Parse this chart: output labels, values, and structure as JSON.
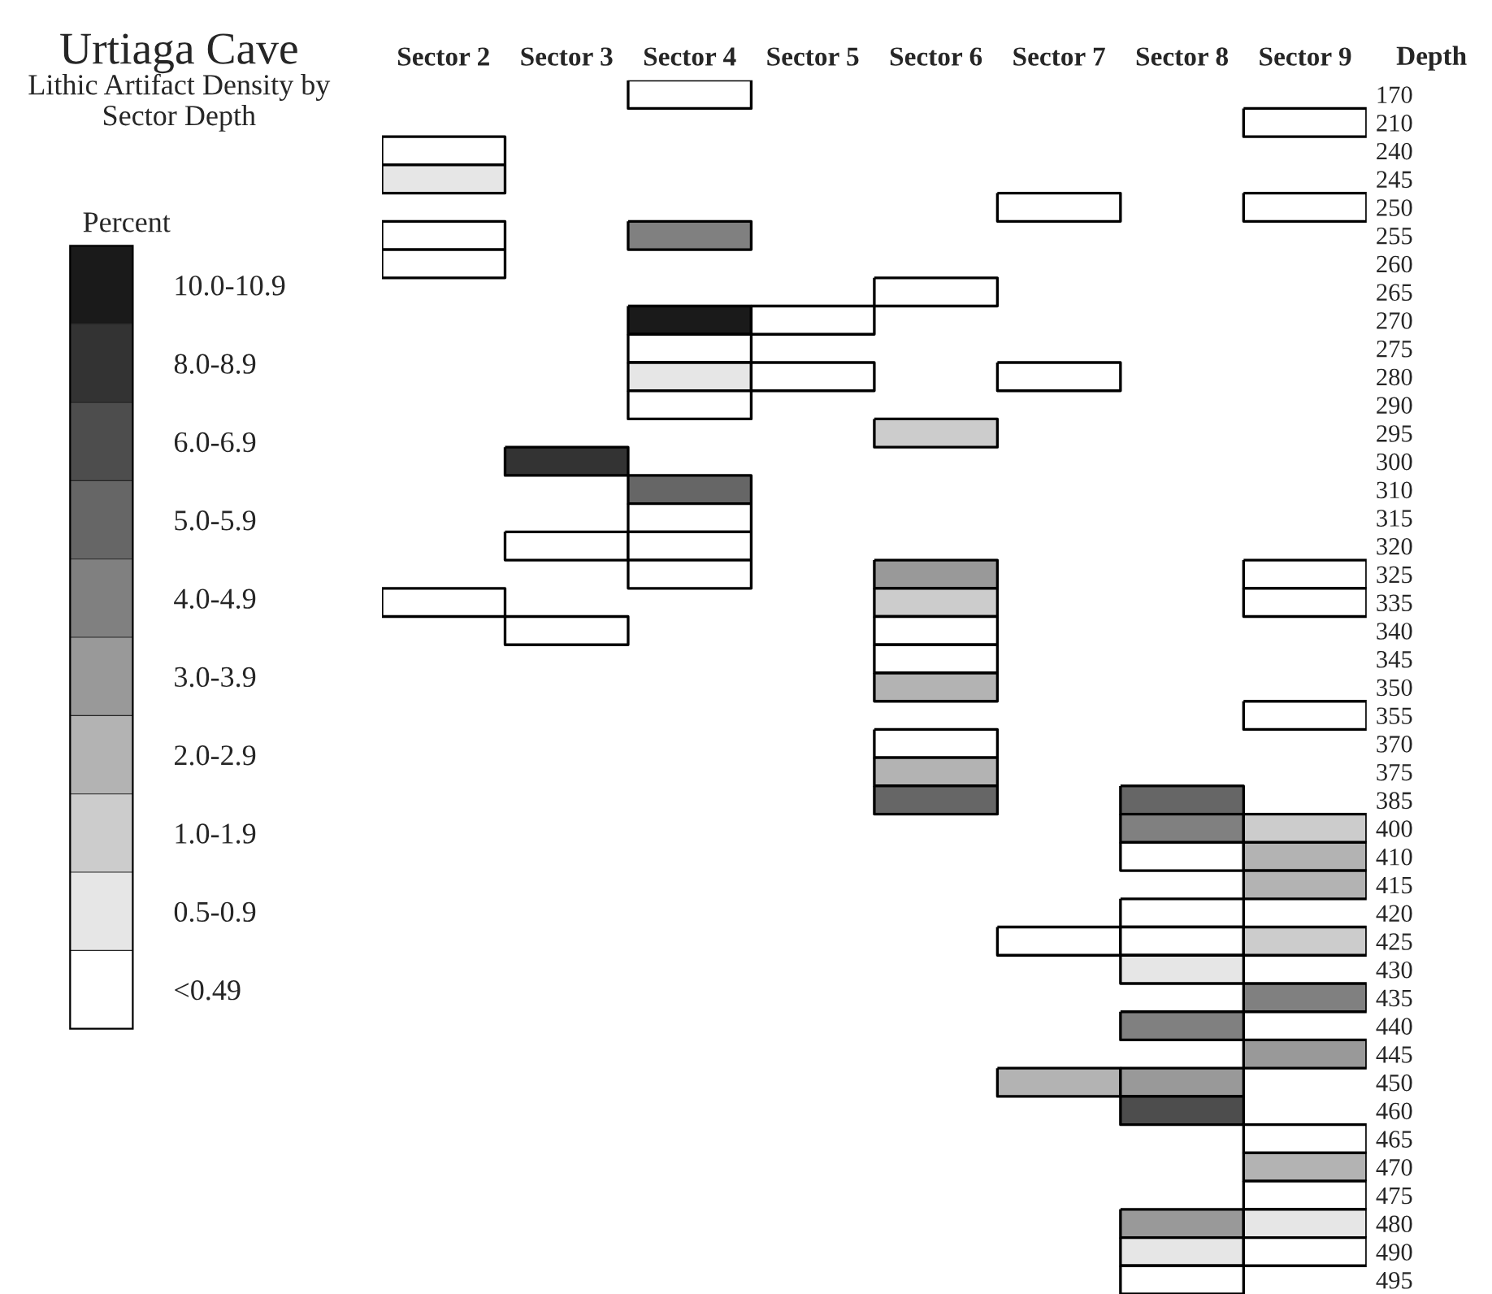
{
  "chart_data": {
    "type": "heatmap",
    "title": "Urtiaga Cave",
    "subtitle": "Lithic Artifact Density by Sector Depth",
    "ylabel": "Depth",
    "clabel": "Percent",
    "categories": [
      "Sector 2",
      "Sector 3",
      "Sector 4",
      "Sector 5",
      "Sector 6",
      "Sector 7",
      "Sector 8",
      "Sector 9"
    ],
    "y_categories": [
      "170",
      "210",
      "240",
      "245",
      "250",
      "255",
      "260",
      "265",
      "270",
      "275",
      "280",
      "290",
      "295",
      "300",
      "310",
      "315",
      "320",
      "325",
      "335",
      "340",
      "345",
      "350",
      "355",
      "370",
      "375",
      "385",
      "400",
      "410",
      "415",
      "420",
      "425",
      "430",
      "435",
      "440",
      "445",
      "450",
      "460",
      "465",
      "470",
      "475",
      "480",
      "490",
      "495"
    ],
    "cells": [
      [
        null,
        null,
        0,
        null,
        null,
        null,
        null,
        null
      ],
      [
        null,
        null,
        null,
        null,
        null,
        null,
        null,
        0
      ],
      [
        0,
        null,
        null,
        null,
        null,
        null,
        null,
        null
      ],
      [
        1,
        null,
        null,
        null,
        null,
        null,
        null,
        null
      ],
      [
        null,
        null,
        null,
        null,
        null,
        0,
        null,
        0
      ],
      [
        0,
        null,
        5,
        null,
        null,
        null,
        null,
        null
      ],
      [
        0,
        null,
        null,
        null,
        null,
        null,
        null,
        null
      ],
      [
        null,
        null,
        null,
        null,
        0,
        null,
        null,
        null
      ],
      [
        null,
        null,
        9,
        0,
        null,
        null,
        null,
        null
      ],
      [
        null,
        null,
        0,
        null,
        null,
        null,
        null,
        null
      ],
      [
        null,
        null,
        1,
        0,
        null,
        0,
        null,
        null
      ],
      [
        null,
        null,
        0,
        null,
        null,
        null,
        null,
        null
      ],
      [
        null,
        null,
        null,
        null,
        2,
        null,
        null,
        null
      ],
      [
        null,
        8,
        null,
        null,
        null,
        null,
        null,
        null
      ],
      [
        null,
        null,
        6,
        null,
        null,
        null,
        null,
        null
      ],
      [
        null,
        null,
        0,
        null,
        null,
        null,
        null,
        null
      ],
      [
        null,
        0,
        0,
        null,
        null,
        null,
        null,
        null
      ],
      [
        null,
        null,
        0,
        null,
        4,
        null,
        null,
        0
      ],
      [
        0,
        null,
        null,
        null,
        2,
        null,
        null,
        0
      ],
      [
        null,
        0,
        null,
        null,
        0,
        null,
        null,
        null
      ],
      [
        null,
        null,
        null,
        null,
        0,
        null,
        null,
        null
      ],
      [
        null,
        null,
        null,
        null,
        3,
        null,
        null,
        null
      ],
      [
        null,
        null,
        null,
        null,
        null,
        null,
        null,
        0
      ],
      [
        null,
        null,
        null,
        null,
        0,
        null,
        null,
        null
      ],
      [
        null,
        null,
        null,
        null,
        3,
        null,
        null,
        null
      ],
      [
        null,
        null,
        null,
        null,
        6,
        null,
        6,
        null
      ],
      [
        null,
        null,
        null,
        null,
        null,
        null,
        5,
        2
      ],
      [
        null,
        null,
        null,
        null,
        null,
        null,
        0,
        3
      ],
      [
        null,
        null,
        null,
        null,
        null,
        null,
        null,
        3
      ],
      [
        null,
        null,
        null,
        null,
        null,
        null,
        0,
        null
      ],
      [
        null,
        null,
        null,
        null,
        null,
        0,
        0,
        2
      ],
      [
        null,
        null,
        null,
        null,
        null,
        null,
        1,
        null
      ],
      [
        null,
        null,
        null,
        null,
        null,
        null,
        null,
        5
      ],
      [
        null,
        null,
        null,
        null,
        null,
        null,
        5,
        null
      ],
      [
        null,
        null,
        null,
        null,
        null,
        null,
        null,
        4
      ],
      [
        null,
        null,
        null,
        null,
        null,
        3,
        4,
        null
      ],
      [
        null,
        null,
        null,
        null,
        null,
        null,
        7,
        null
      ],
      [
        null,
        null,
        null,
        null,
        null,
        null,
        null,
        0
      ],
      [
        null,
        null,
        null,
        null,
        null,
        null,
        null,
        3
      ],
      [
        null,
        null,
        null,
        null,
        null,
        null,
        null,
        0
      ],
      [
        null,
        null,
        null,
        null,
        null,
        null,
        4,
        1
      ],
      [
        null,
        null,
        null,
        null,
        null,
        null,
        1,
        0
      ],
      [
        null,
        null,
        null,
        null,
        null,
        null,
        0,
        null
      ]
    ],
    "clim": [
      -0.5,
      9.5
    ],
    "cticks": [
      {
        "value": 0,
        "label": "<0.49"
      },
      {
        "value": 1,
        "label": "0.5-0.9"
      },
      {
        "value": 2,
        "label": "1.0-1.9"
      },
      {
        "value": 3,
        "label": "2.0-2.9"
      },
      {
        "value": 4,
        "label": "3.0-3.9"
      },
      {
        "value": 5,
        "label": "4.0-4.9"
      },
      {
        "value": 6,
        "label": "5.0-5.9"
      },
      {
        "value": 7,
        "label": "6.0-6.9"
      },
      {
        "value": 8,
        "label": "8.0-8.9"
      },
      {
        "value": 9,
        "label": "10.0-10.9"
      }
    ]
  }
}
